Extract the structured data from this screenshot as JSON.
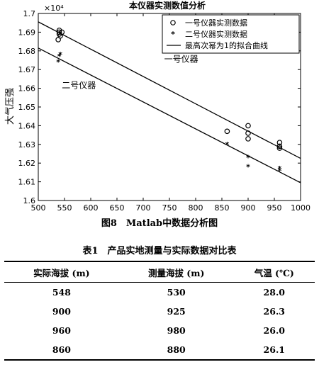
{
  "chart_data": {
    "type": "scatter",
    "title": "本仪器实测数值分析",
    "xlabel": "",
    "ylabel": "大气压强",
    "y_exponent_label": "×10⁴",
    "xlim": [
      500,
      1000
    ],
    "ylim": [
      1.6,
      1.7
    ],
    "x_ticks": [
      500,
      550,
      600,
      650,
      700,
      750,
      800,
      850,
      900,
      950,
      1000
    ],
    "y_ticks": [
      1.6,
      1.61,
      1.62,
      1.63,
      1.64,
      1.65,
      1.66,
      1.67,
      1.68,
      1.69,
      1.7
    ],
    "legend_position": "top-right",
    "series": [
      {
        "name": "一号仪器实测数据",
        "marker": "circle",
        "points": [
          [
            540,
            1.691
          ],
          [
            540,
            1.69
          ],
          [
            540,
            1.689
          ],
          [
            542,
            1.688
          ],
          [
            538,
            1.686
          ],
          [
            545,
            1.69
          ],
          [
            860,
            1.637
          ],
          [
            900,
            1.64
          ],
          [
            900,
            1.636
          ],
          [
            900,
            1.633
          ],
          [
            960,
            1.631
          ],
          [
            960,
            1.629
          ],
          [
            960,
            1.628
          ]
        ]
      },
      {
        "name": "二号仪器实测数据",
        "marker": "star",
        "points": [
          [
            540,
            1.677
          ],
          [
            542,
            1.678
          ],
          [
            538,
            1.674
          ],
          [
            860,
            1.63
          ],
          [
            900,
            1.623
          ],
          [
            900,
            1.618
          ],
          [
            960,
            1.617
          ],
          [
            960,
            1.616
          ]
        ]
      },
      {
        "name": "最高次幂为1的拟合曲线",
        "type": "line",
        "lines": [
          [
            [
              500,
              1.6955
            ],
            [
              1000,
              1.6225
            ]
          ],
          [
            [
              500,
              1.6815
            ],
            [
              1000,
              1.6095
            ]
          ]
        ]
      }
    ],
    "annotations": [
      {
        "text": "一号仪器",
        "x": 740,
        "y": 1.674
      },
      {
        "text": "二号仪器",
        "x": 545,
        "y": 1.66
      }
    ]
  },
  "figure_caption": "图8　Matlab中数据分析图",
  "table": {
    "title": "表1　产品实地测量与实际数据对比表",
    "headers": [
      "实际海拔 (m)",
      "测量海拔 (m)",
      "气温 (℃)"
    ],
    "rows": [
      [
        "548",
        "530",
        "28.0"
      ],
      [
        "900",
        "925",
        "26.3"
      ],
      [
        "960",
        "980",
        "26.0"
      ],
      [
        "860",
        "880",
        "26.1"
      ]
    ]
  }
}
